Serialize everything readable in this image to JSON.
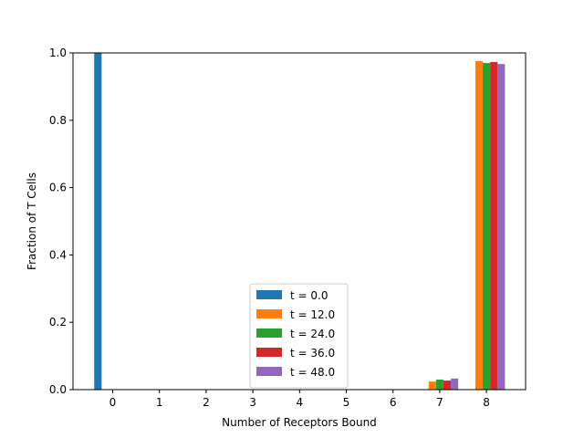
{
  "chart_data": {
    "type": "bar",
    "xlabel": "Number of Receptors Bound",
    "ylabel": "Fraction of T Cells",
    "categories": [
      "0",
      "1",
      "2",
      "3",
      "4",
      "5",
      "6",
      "7",
      "8"
    ],
    "ylim": [
      0,
      1.0
    ],
    "yticks": [
      "0.0",
      "0.2",
      "0.4",
      "0.6",
      "0.8",
      "1.0"
    ],
    "grid": false,
    "legend_position": "lower center",
    "series": [
      {
        "name": "t = 0.0",
        "color": "#1f77b4",
        "values": [
          1.0,
          0,
          0,
          0,
          0,
          0,
          0,
          0,
          0
        ]
      },
      {
        "name": "t = 12.0",
        "color": "#ff7f0e",
        "values": [
          0,
          0,
          0,
          0,
          0,
          0,
          0,
          0.024,
          0.976
        ]
      },
      {
        "name": "t = 24.0",
        "color": "#2ca02c",
        "values": [
          0,
          0,
          0,
          0,
          0,
          0,
          0,
          0.03,
          0.97
        ]
      },
      {
        "name": "t = 36.0",
        "color": "#d62728",
        "values": [
          0,
          0,
          0,
          0,
          0,
          0,
          0,
          0.027,
          0.973
        ]
      },
      {
        "name": "t = 48.0",
        "color": "#9467bd",
        "values": [
          0,
          0,
          0,
          0,
          0,
          0,
          0,
          0.033,
          0.967
        ]
      }
    ]
  }
}
